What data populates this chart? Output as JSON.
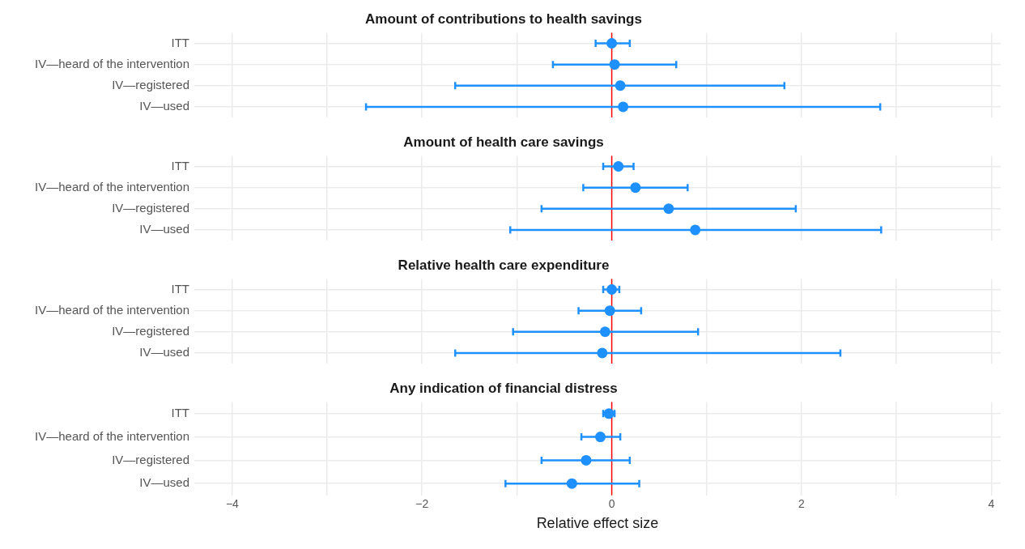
{
  "chart_data": [
    {
      "type": "scatter",
      "title": "Amount of contributions to health savings",
      "orientation": "horizontal",
      "categories": [
        "ITT",
        "IV—heard of the intervention",
        "IV—registered",
        "IV—used"
      ],
      "color": "#1e90ff",
      "marker": "circle",
      "grid": true,
      "tick_labels": "y",
      "values": [
        0.0,
        0.03,
        0.09,
        0.12
      ],
      "errors": [
        [
          -0.17,
          0.19
        ],
        [
          -0.62,
          0.68
        ],
        [
          -1.65,
          1.82
        ],
        [
          -2.59,
          2.83
        ]
      ],
      "xlim": [
        -4.4,
        4.1
      ],
      "xticks": [
        -4,
        {
          "value": -3,
          "label": null
        },
        -2,
        {
          "value": -1,
          "label": null
        },
        0,
        {
          "value": 1,
          "label": null
        },
        2,
        {
          "value": 3,
          "label": null
        },
        4
      ],
      "ref_lines": [
        {
          "axis": "x",
          "value": 0,
          "color": "#ff0000"
        }
      ]
    },
    {
      "type": "scatter",
      "title": "Amount of health care savings",
      "orientation": "horizontal",
      "categories": [
        "ITT",
        "IV—heard of the intervention",
        "IV—registered",
        "IV—used"
      ],
      "color": "#1e90ff",
      "marker": "circle",
      "grid": true,
      "tick_labels": "y",
      "values": [
        0.07,
        0.25,
        0.6,
        0.88
      ],
      "errors": [
        [
          -0.09,
          0.23
        ],
        [
          -0.3,
          0.8
        ],
        [
          -0.74,
          1.94
        ],
        [
          -1.07,
          2.84
        ]
      ],
      "xlim": [
        -4.4,
        4.1
      ],
      "xticks": [
        -4,
        {
          "value": -3,
          "label": null
        },
        -2,
        {
          "value": -1,
          "label": null
        },
        0,
        {
          "value": 1,
          "label": null
        },
        2,
        {
          "value": 3,
          "label": null
        },
        4
      ],
      "ref_lines": [
        {
          "axis": "x",
          "value": 0,
          "color": "#ff0000"
        }
      ]
    },
    {
      "type": "scatter",
      "title": "Relative health care expenditure",
      "orientation": "horizontal",
      "categories": [
        "ITT",
        "IV—heard of the intervention",
        "IV—registered",
        "IV—used"
      ],
      "color": "#1e90ff",
      "marker": "circle",
      "grid": true,
      "tick_labels": "y",
      "values": [
        0.0,
        -0.02,
        -0.07,
        -0.1
      ],
      "errors": [
        [
          -0.09,
          0.08
        ],
        [
          -0.35,
          0.31
        ],
        [
          -1.04,
          0.91
        ],
        [
          -1.65,
          2.41
        ]
      ],
      "xlim": [
        -4.4,
        4.1
      ],
      "xticks": [
        -4,
        {
          "value": -3,
          "label": null
        },
        -2,
        {
          "value": -1,
          "label": null
        },
        0,
        {
          "value": 1,
          "label": null
        },
        2,
        {
          "value": 3,
          "label": null
        },
        4
      ],
      "ref_lines": [
        {
          "axis": "x",
          "value": 0,
          "color": "#ff0000"
        }
      ]
    },
    {
      "type": "scatter",
      "title": "Any indication of financial distress",
      "orientation": "horizontal",
      "categories": [
        "ITT",
        "IV—heard of the intervention",
        "IV—registered",
        "IV—used"
      ],
      "color": "#1e90ff",
      "marker": "circle",
      "grid": true,
      "xlabel": "Relative effect size",
      "values": [
        -0.03,
        -0.12,
        -0.27,
        -0.42
      ],
      "errors": [
        [
          -0.09,
          0.03
        ],
        [
          -0.32,
          0.09
        ],
        [
          -0.74,
          0.19
        ],
        [
          -1.12,
          0.29
        ]
      ],
      "xlim": [
        -4.4,
        4.1
      ],
      "xticks": [
        -4,
        {
          "value": -3,
          "label": null
        },
        -2,
        {
          "value": -1,
          "label": null
        },
        0,
        {
          "value": 1,
          "label": null
        },
        2,
        {
          "value": 3,
          "label": null
        },
        4
      ],
      "ref_lines": [
        {
          "axis": "x",
          "value": 0,
          "color": "#ff0000"
        }
      ]
    }
  ]
}
